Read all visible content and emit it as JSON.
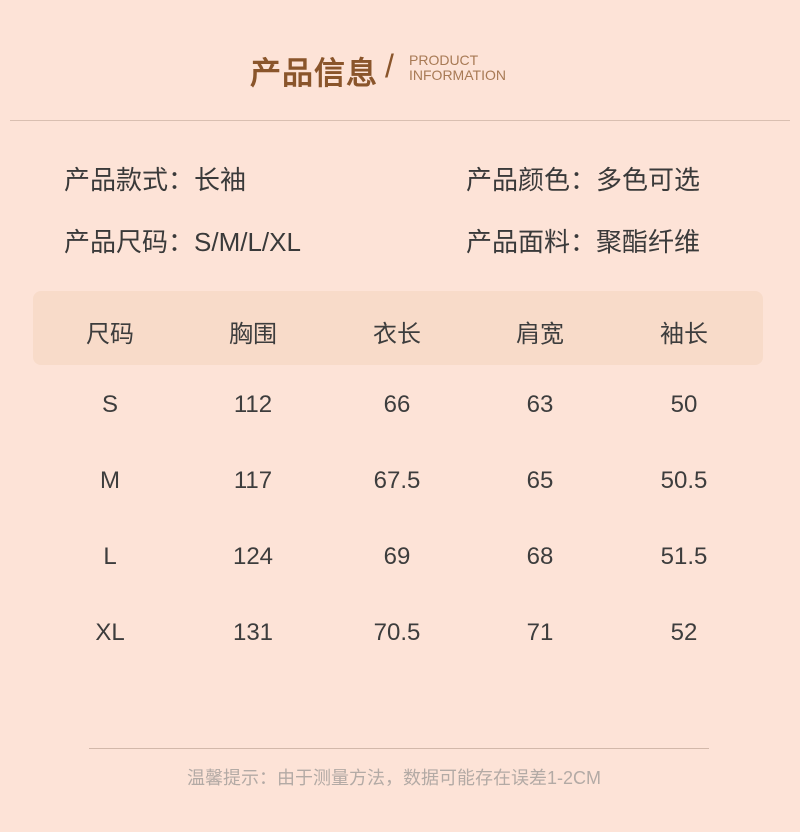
{
  "header": {
    "title": "产品信息",
    "separator": "/",
    "subtitle_line1": "PRODUCT",
    "subtitle_line2": "INFORMATION"
  },
  "info": [
    {
      "label": "产品款式：",
      "value": "长袖"
    },
    {
      "label": "产品颜色：",
      "value": "多色可选"
    },
    {
      "label": "产品尺码：",
      "value": "S/M/L/XL"
    },
    {
      "label": "产品面料：",
      "value": "聚酯纤维"
    }
  ],
  "table": {
    "headers": [
      "尺码",
      "胸围",
      "衣长",
      "肩宽",
      "袖长"
    ],
    "rows": [
      [
        "S",
        "112",
        "66",
        "63",
        "50"
      ],
      [
        "M",
        "117",
        "67.5",
        "65",
        "50.5"
      ],
      [
        "L",
        "124",
        "69",
        "68",
        "51.5"
      ],
      [
        "XL",
        "131",
        "70.5",
        "71",
        "52"
      ]
    ]
  },
  "footer": {
    "note": "温馨提示：由于测量方法，数据可能存在误差1-2CM"
  },
  "colors": {
    "background": "#fde3d7",
    "accent": "#8a552b",
    "header_row": "#f8dbc9"
  }
}
